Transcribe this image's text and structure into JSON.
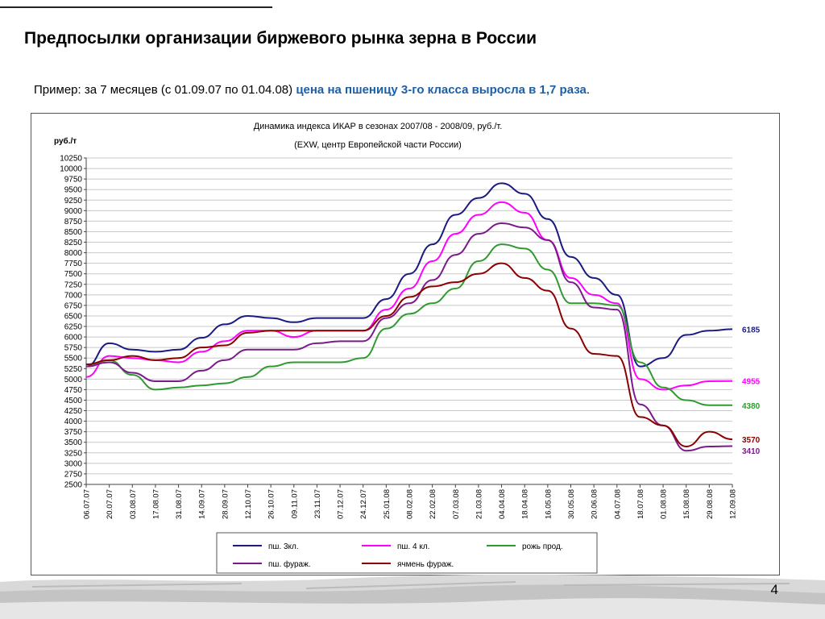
{
  "slide": {
    "title": "Предпосылки организации биржевого рынка зерна в России",
    "subtitle_prefix": "Пример: за 7 месяцев (с 01.09.07 по 01.04.08) ",
    "subtitle_highlight": "цена на пшеницу 3-го класса выросла в 1,7 раза",
    "subtitle_suffix": ".",
    "page_number": "4",
    "highlight_color": "#1b5fa8"
  },
  "chart_data": {
    "type": "line",
    "title": "Динамика индекса ИКАР в сезонах  2007/08 - 2008/09, руб./т.",
    "subtitle": "(EXW, центр Европейской части России)",
    "ylabel": "руб./т",
    "ylim": [
      2500,
      10250
    ],
    "ytick_step": 250,
    "grid": true,
    "legend_position": "bottom",
    "x": [
      "06.07.07",
      "20.07.07",
      "03.08.07",
      "17.08.07",
      "31.08.07",
      "14.09.07",
      "28.09.07",
      "12.10.07",
      "26.10.07",
      "09.11.07",
      "23.11.07",
      "07.12.07",
      "24.12.07",
      "25.01.08",
      "08.02.08",
      "22.02.08",
      "07.03.08",
      "21.03.08",
      "04.04.08",
      "18.04.08",
      "16.05.08",
      "30.05.08",
      "20.06.08",
      "04.07.08",
      "18.07.08",
      "01.08.08",
      "15.08.08",
      "29.08.08",
      "12.09.08"
    ],
    "series": [
      {
        "name": "пш. 3кл.",
        "color": "#1a1a80",
        "end_label": "6185",
        "values": [
          5300,
          5850,
          5700,
          5650,
          5700,
          5980,
          6300,
          6500,
          6450,
          6350,
          6450,
          6450,
          6450,
          6900,
          7500,
          8200,
          8900,
          9300,
          9650,
          9400,
          8800,
          7900,
          7400,
          7000,
          5300,
          5500,
          6050,
          6150,
          6185
        ]
      },
      {
        "name": "пш. 4 кл.",
        "color": "#ff00ff",
        "end_label": "4955",
        "values": [
          5050,
          5550,
          5500,
          5450,
          5400,
          5650,
          5900,
          6150,
          6150,
          6000,
          6150,
          6150,
          6150,
          6650,
          7150,
          7800,
          8450,
          8900,
          9200,
          8950,
          8300,
          7400,
          7000,
          6800,
          5000,
          4750,
          4850,
          4950,
          4955
        ]
      },
      {
        "name": "рожь прод.",
        "color": "#2f9a2f",
        "end_label": "4380",
        "values": [
          5300,
          5450,
          5100,
          4750,
          4800,
          4850,
          4900,
          5050,
          5300,
          5400,
          5400,
          5400,
          5500,
          6200,
          6550,
          6800,
          7150,
          7800,
          8200,
          8100,
          7600,
          6800,
          6800,
          6750,
          5400,
          4800,
          4500,
          4380,
          4380
        ]
      },
      {
        "name": "пш. фураж.",
        "color": "#7b1a8a",
        "end_label": "3410",
        "values": [
          5300,
          5400,
          5150,
          4950,
          4950,
          5200,
          5450,
          5700,
          5700,
          5700,
          5850,
          5900,
          5900,
          6450,
          6800,
          7350,
          7950,
          8450,
          8700,
          8600,
          8300,
          7300,
          6700,
          6650,
          4400,
          3900,
          3300,
          3400,
          3410
        ]
      },
      {
        "name": "ячмень фураж.",
        "color": "#8b0000",
        "end_label": "3570",
        "values": [
          5350,
          5450,
          5550,
          5450,
          5500,
          5750,
          5800,
          6100,
          6150,
          6150,
          6150,
          6150,
          6150,
          6500,
          6950,
          7200,
          7300,
          7500,
          7750,
          7400,
          7100,
          6200,
          5600,
          5550,
          4100,
          3900,
          3400,
          3750,
          3570
        ]
      }
    ]
  }
}
